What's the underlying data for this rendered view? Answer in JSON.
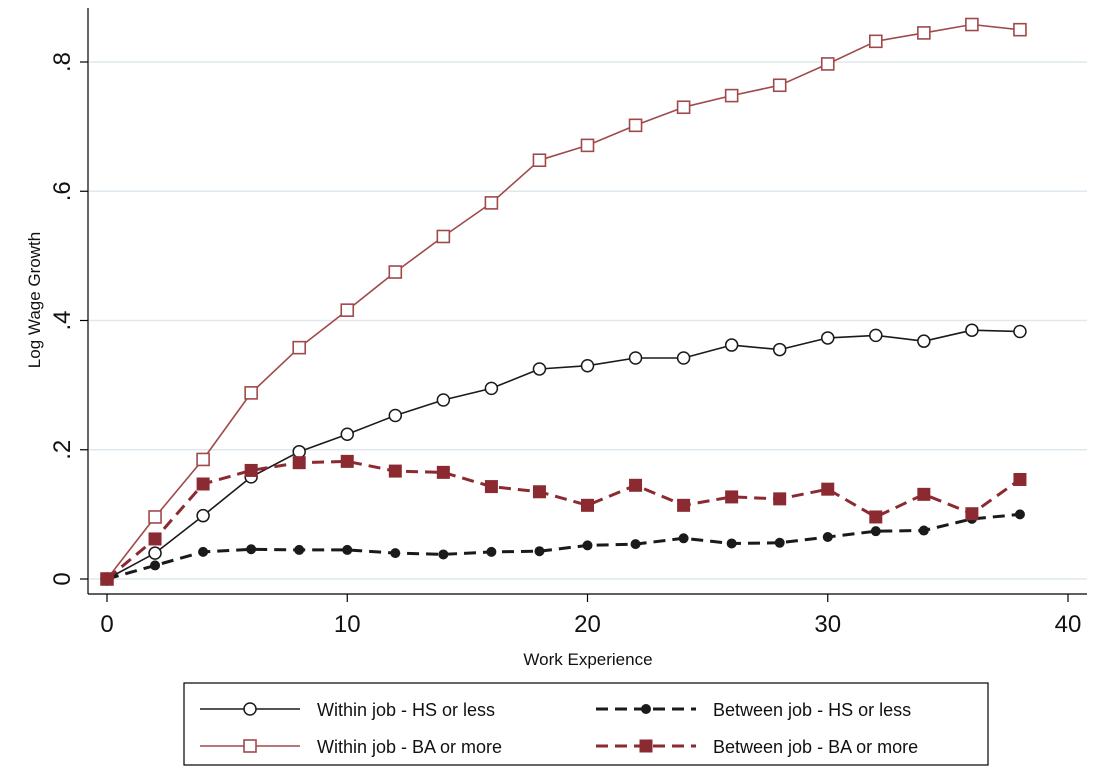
{
  "chart_data": {
    "type": "line",
    "title": "",
    "xlabel": "Work Experience",
    "ylabel": "Log Wage Growth",
    "xlim": [
      0,
      40
    ],
    "ylim": [
      0,
      0.8
    ],
    "xticks": [
      0,
      10,
      20,
      30,
      40
    ],
    "xtick_labels": [
      "0",
      "10",
      "20",
      "30",
      "40"
    ],
    "yticks": [
      0,
      0.2,
      0.4,
      0.6,
      0.8
    ],
    "ytick_labels": [
      "0",
      ".2",
      ".4",
      ".6",
      ".8"
    ],
    "grid": "horizontal",
    "legend_position": "bottom",
    "x": [
      0,
      2,
      4,
      6,
      8,
      10,
      12,
      14,
      16,
      18,
      20,
      22,
      24,
      26,
      28,
      30,
      32,
      34,
      36,
      38
    ],
    "series": [
      {
        "name": "Within job - HS or less",
        "color": "#1a1a1a",
        "line_style": "solid",
        "marker": "hollow-circle",
        "values": [
          0,
          0.04,
          0.098,
          0.158,
          0.197,
          0.224,
          0.253,
          0.277,
          0.295,
          0.325,
          0.33,
          0.342,
          0.342,
          0.362,
          0.355,
          0.373,
          0.377,
          0.368,
          0.385,
          0.383
        ]
      },
      {
        "name": "Between job - HS or less",
        "color": "#1a1a1a",
        "line_style": "dashed",
        "marker": "filled-circle",
        "values": [
          0,
          0.021,
          0.042,
          0.046,
          0.045,
          0.045,
          0.04,
          0.038,
          0.042,
          0.043,
          0.052,
          0.054,
          0.063,
          0.055,
          0.056,
          0.065,
          0.074,
          0.075,
          0.093,
          0.1
        ]
      },
      {
        "name": "Within job - BA or more",
        "color": "#a0494b",
        "line_style": "solid",
        "marker": "hollow-square",
        "values": [
          0,
          0.096,
          0.185,
          0.288,
          0.358,
          0.416,
          0.475,
          0.53,
          0.582,
          0.648,
          0.671,
          0.702,
          0.73,
          0.748,
          0.764,
          0.797,
          0.832,
          0.845,
          0.858,
          0.85
        ]
      },
      {
        "name": "Between job - BA or more",
        "color": "#8b2a30",
        "line_style": "dashed",
        "marker": "filled-square",
        "values": [
          0,
          0.062,
          0.147,
          0.168,
          0.18,
          0.182,
          0.167,
          0.165,
          0.143,
          0.135,
          0.114,
          0.145,
          0.114,
          0.127,
          0.124,
          0.139,
          0.096,
          0.131,
          0.101,
          0.154
        ]
      }
    ],
    "legend": {
      "entries": [
        "Within job - HS or less",
        "Between job - HS or less",
        "Within job - BA or more",
        "Between job - BA or more"
      ],
      "columns": 2
    }
  }
}
